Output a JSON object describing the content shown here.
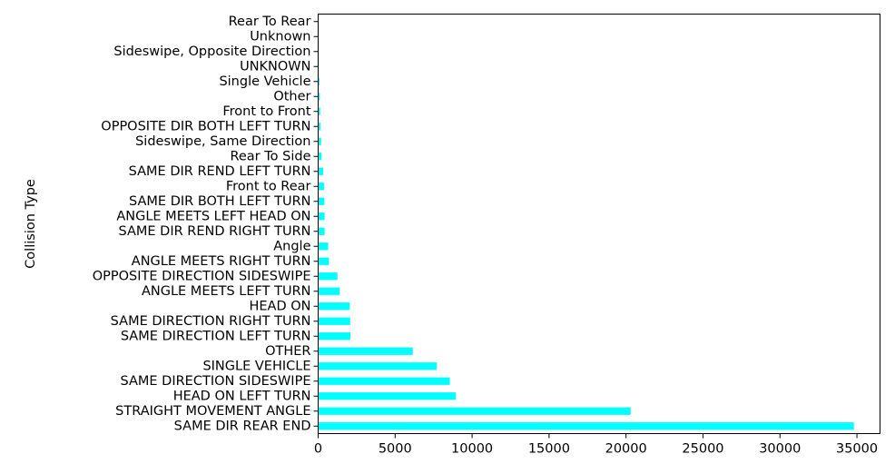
{
  "chart_data": {
    "type": "bar",
    "orientation": "horizontal",
    "title": "",
    "xlabel": "",
    "ylabel": "Collision Type",
    "grid": false,
    "legend": "none",
    "bar_color": "#00ffff",
    "xlim": [
      0,
      36500
    ],
    "xticks": [
      0,
      5000,
      10000,
      15000,
      20000,
      25000,
      30000,
      35000
    ],
    "xtick_labels": [
      "0",
      "5000",
      "10000",
      "15000",
      "20000",
      "25000",
      "30000",
      "35000"
    ],
    "categories": [
      "SAME DIR REAR END",
      "STRAIGHT MOVEMENT ANGLE",
      "HEAD ON LEFT TURN",
      "SAME DIRECTION SIDESWIPE",
      "SINGLE VEHICLE",
      "OTHER",
      "SAME DIRECTION LEFT TURN",
      "SAME DIRECTION RIGHT TURN",
      "HEAD ON",
      "ANGLE MEETS LEFT TURN",
      "OPPOSITE DIRECTION SIDESWIPE",
      "ANGLE MEETS RIGHT TURN",
      "Angle",
      "SAME DIR REND RIGHT TURN",
      "ANGLE MEETS LEFT HEAD ON",
      "SAME DIR BOTH LEFT TURN",
      "Front to Rear",
      "SAME DIR REND LEFT TURN",
      "Rear To Side",
      "Sideswipe, Same Direction",
      "OPPOSITE DIR BOTH LEFT TURN",
      "Front to Front",
      "Other",
      "Single Vehicle",
      "UNKNOWN",
      "Sideswipe, Opposite Direction",
      "Unknown",
      "Rear To Rear"
    ],
    "values": [
      34800,
      20300,
      8950,
      8550,
      7700,
      6150,
      2100,
      2080,
      2050,
      1400,
      1250,
      700,
      650,
      420,
      420,
      400,
      380,
      330,
      220,
      190,
      150,
      130,
      110,
      90,
      40,
      30,
      20,
      10
    ]
  }
}
